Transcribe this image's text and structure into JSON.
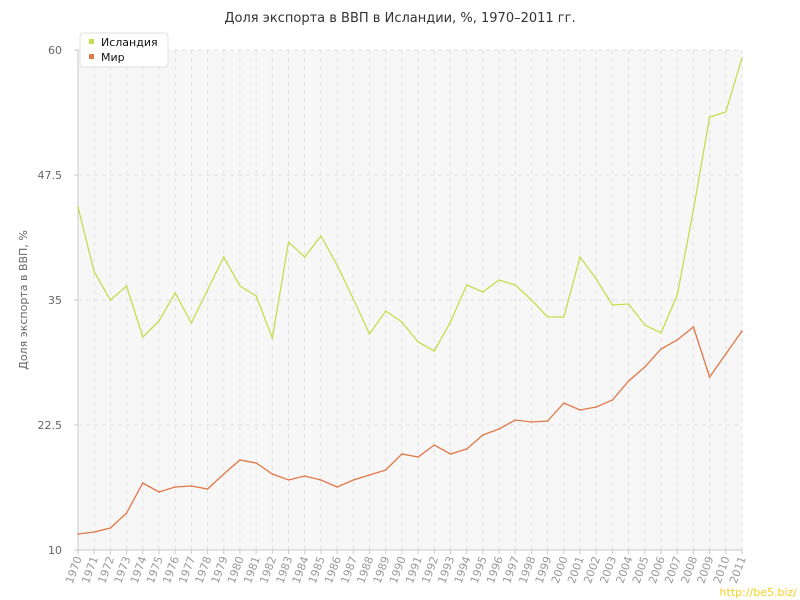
{
  "chart_data": {
    "type": "line",
    "title": "Доля экспорта в ВВП в Исландии, %, 1970–2011 гг.",
    "xlabel": "",
    "ylabel": "Доля экспорта в ВВП, %",
    "ylim": [
      10,
      60
    ],
    "yticks": [
      "10",
      "22.5",
      "35",
      "47.5",
      "60"
    ],
    "grid": true,
    "legend_position": "top-left",
    "x": [
      "1970",
      "1971",
      "1972",
      "1973",
      "1974",
      "1975",
      "1976",
      "1977",
      "1978",
      "1979",
      "1980",
      "1981",
      "1982",
      "1983",
      "1984",
      "1985",
      "1986",
      "1987",
      "1988",
      "1989",
      "1990",
      "1991",
      "1992",
      "1993",
      "1994",
      "1995",
      "1996",
      "1997",
      "1998",
      "1999",
      "2000",
      "2001",
      "2002",
      "2003",
      "2004",
      "2005",
      "2006",
      "2007",
      "2008",
      "2009",
      "2010",
      "2011"
    ],
    "series": [
      {
        "name": "Исландия",
        "color": "#c8dc50",
        "values": [
          44.3,
          37.8,
          35.0,
          36.4,
          31.3,
          32.9,
          35.7,
          32.7,
          36.0,
          39.3,
          36.4,
          35.4,
          31.2,
          40.8,
          39.3,
          41.4,
          38.5,
          35.1,
          31.6,
          33.9,
          32.8,
          30.8,
          29.9,
          32.8,
          36.5,
          35.8,
          37.0,
          36.5,
          35.0,
          33.3,
          33.3,
          39.3,
          37.1,
          34.5,
          34.6,
          32.5,
          31.7,
          35.5,
          44.0,
          53.3,
          53.8,
          59.2
        ]
      },
      {
        "name": "Мир",
        "color": "#e07848",
        "values": [
          11.6,
          11.8,
          12.2,
          13.7,
          16.7,
          15.8,
          16.3,
          16.4,
          16.1,
          17.6,
          19.0,
          18.7,
          17.6,
          17.0,
          17.4,
          17.0,
          16.3,
          17.0,
          17.5,
          18.0,
          19.6,
          19.3,
          20.5,
          19.6,
          20.1,
          21.5,
          22.1,
          23.0,
          22.8,
          22.9,
          24.7,
          24.0,
          24.3,
          25.0,
          26.9,
          28.3,
          30.1,
          31.0,
          32.3,
          27.3,
          29.6,
          31.9
        ]
      }
    ]
  },
  "watermark": "http://be5.biz/"
}
